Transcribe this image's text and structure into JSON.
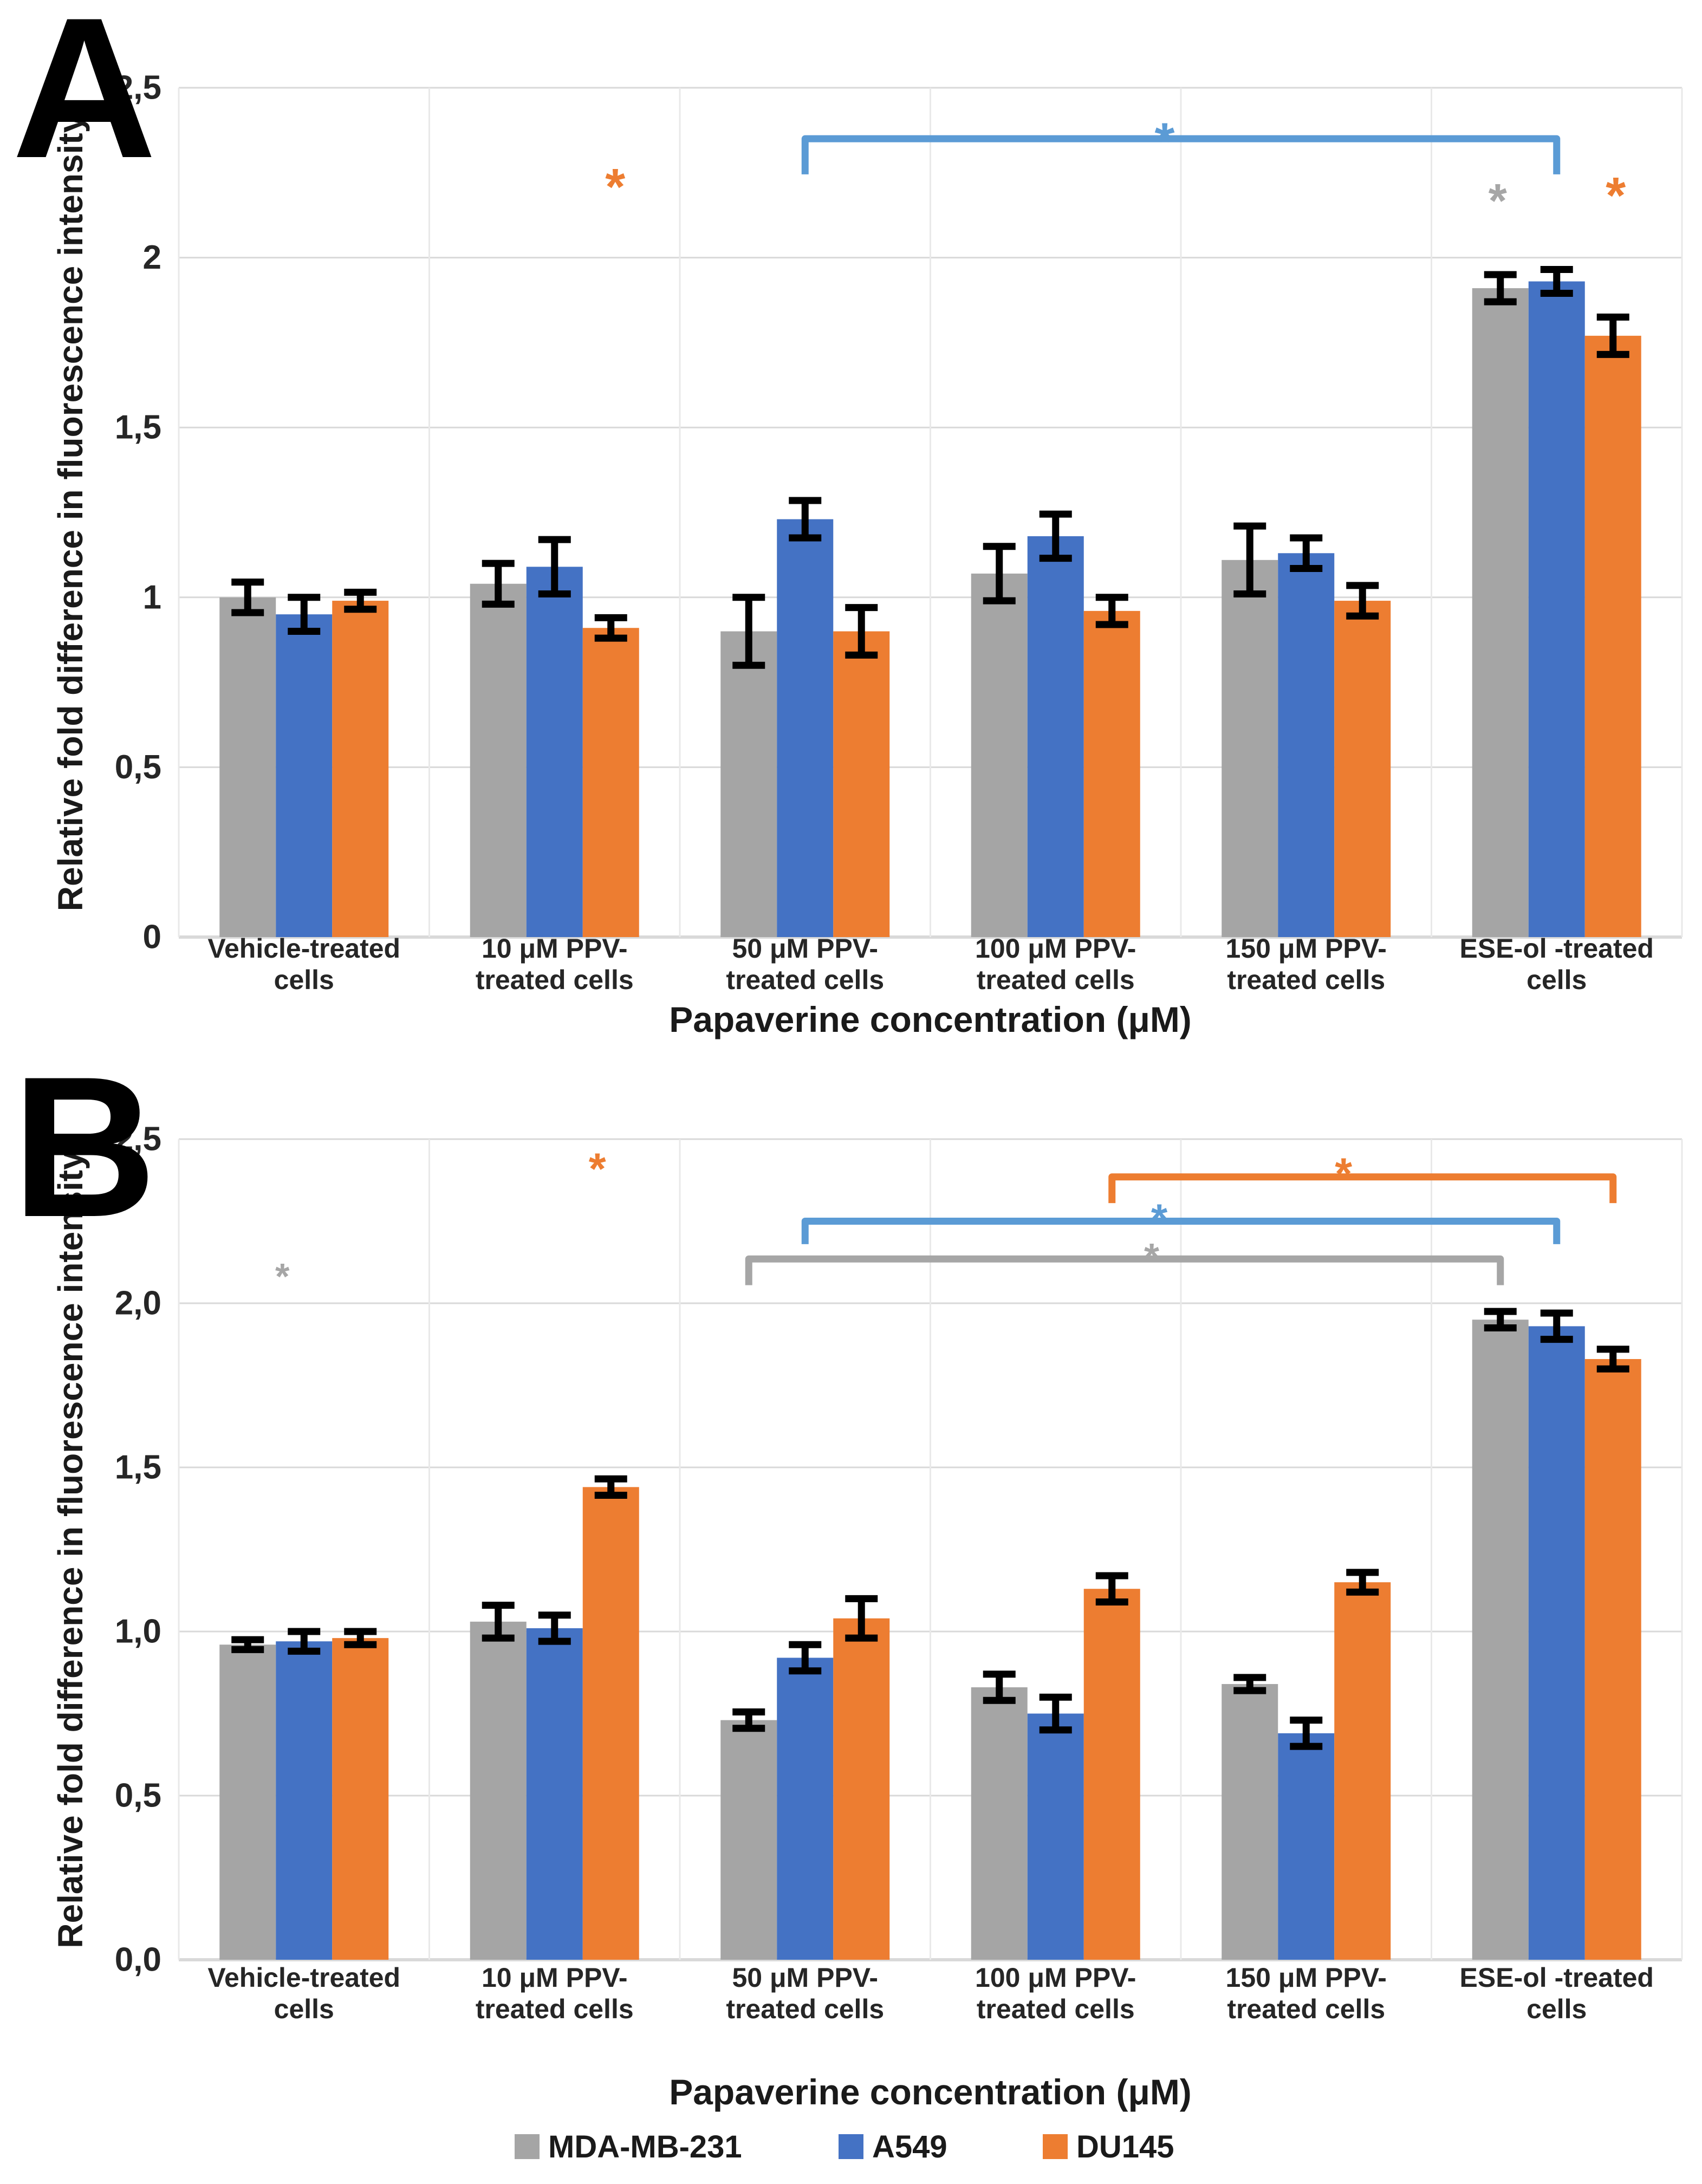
{
  "chart_data": {
    "type": "bar",
    "description": "Two-panel grouped bar chart with error bars and significance markers",
    "x_axis_title": "Papaverine concentration  (μM)",
    "y_axis_title": "Relative fold difference in fluorescence intensity",
    "categories_two_line": [
      [
        "Vehicle-treated",
        "cells"
      ],
      [
        "10 μM PPV-",
        "treated cells"
      ],
      [
        "50 μM PPV-",
        "treated cells"
      ],
      [
        "100 μM PPV-",
        "treated cells"
      ],
      [
        "150 μM PPV-",
        "treated cells"
      ],
      [
        "ESE-ol -treated",
        "cells"
      ]
    ],
    "series_names": [
      "MDA-MB-231",
      "A549",
      "DU145"
    ],
    "series_colors": [
      "#A5A5A5",
      "#4472C4",
      "#ED7D31"
    ],
    "ylim": [
      0,
      2.5
    ],
    "grid": true,
    "panels": [
      {
        "label": "A",
        "ticks": [
          {
            "label": "2,5",
            "value": 2.5
          },
          {
            "label": "2",
            "value": 2.0
          },
          {
            "label": "1,5",
            "value": 1.5
          },
          {
            "label": "1",
            "value": 1.0
          },
          {
            "label": "0,5",
            "value": 0.5
          },
          {
            "label": "0",
            "value": 0.0
          }
        ],
        "series": [
          {
            "name": "MDA-MB-231",
            "color": "#A5A5A5",
            "values": [
              1.0,
              1.04,
              0.9,
              1.07,
              1.11,
              1.91
            ],
            "errors": [
              0.045,
              0.06,
              0.1,
              0.08,
              0.1,
              0.04
            ]
          },
          {
            "name": "A549",
            "color": "#4472C4",
            "values": [
              0.95,
              1.09,
              1.23,
              1.18,
              1.13,
              1.93
            ],
            "errors": [
              0.05,
              0.08,
              0.055,
              0.065,
              0.045,
              0.035
            ]
          },
          {
            "name": "DU145",
            "color": "#ED7D31",
            "values": [
              0.99,
              0.91,
              0.9,
              0.96,
              0.99,
              1.77
            ],
            "errors": [
              0.025,
              0.03,
              0.07,
              0.04,
              0.045,
              0.055
            ]
          }
        ],
        "asterisks": [
          {
            "symbol": "*",
            "color": "#ED7D31",
            "group": 1,
            "series": 2,
            "dx": 8,
            "y": 2.26,
            "size": 95
          },
          {
            "symbol": "*",
            "color": "#A6A6A6",
            "group": 5,
            "series": 0,
            "dx": -5,
            "y": 2.215,
            "size": 88
          },
          {
            "symbol": "*",
            "color": "#ED7D31",
            "group": 5,
            "series": 2,
            "dx": 5,
            "y": 2.235,
            "size": 95
          }
        ],
        "brackets": [
          {
            "color": "#5B9BD5",
            "y": 2.35,
            "tick": 0.105,
            "from": {
              "group": 2,
              "series": 1
            },
            "to": {
              "group": 5,
              "series": 1
            },
            "star": {
              "symbol": "*",
              "y": 2.395,
              "dx": -30,
              "size": 95
            }
          }
        ]
      },
      {
        "label": "B",
        "ticks": [
          {
            "label": "2,5",
            "value": 2.5
          },
          {
            "label": "2,0",
            "value": 2.0
          },
          {
            "label": "1,5",
            "value": 1.5
          },
          {
            "label": "1,0",
            "value": 1.0
          },
          {
            "label": "0,5",
            "value": 0.5
          },
          {
            "label": "0,0",
            "value": 0.0
          }
        ],
        "series": [
          {
            "name": "MDA-MB-231",
            "color": "#A5A5A5",
            "values": [
              0.96,
              1.03,
              0.73,
              0.83,
              0.84,
              1.95
            ],
            "errors": [
              0.015,
              0.05,
              0.025,
              0.04,
              0.02,
              0.025
            ]
          },
          {
            "name": "A549",
            "color": "#4472C4",
            "values": [
              0.97,
              1.01,
              0.92,
              0.75,
              0.69,
              1.93
            ],
            "errors": [
              0.03,
              0.04,
              0.04,
              0.05,
              0.04,
              0.04
            ]
          },
          {
            "name": "DU145",
            "color": "#ED7D31",
            "values": [
              0.98,
              1.44,
              1.04,
              1.13,
              1.15,
              1.83
            ],
            "errors": [
              0.02,
              0.025,
              0.06,
              0.04,
              0.03,
              0.03
            ]
          }
        ],
        "asterisks": [
          {
            "symbol": "*",
            "color": "#A6A6A6",
            "group": 0,
            "series": null,
            "dx": -40,
            "y": 2.12,
            "size": 68
          },
          {
            "symbol": "*",
            "color": "#ED7D31",
            "group": 1,
            "series": 2,
            "dx": -25,
            "y": 2.455,
            "size": 82
          }
        ],
        "brackets": [
          {
            "color": "#A6A6A6",
            "y": 2.135,
            "tick": 0.08,
            "from": {
              "group": 2,
              "series": 0
            },
            "to": {
              "group": 5,
              "series": 0
            },
            "star": {
              "symbol": "*",
              "y": 2.18,
              "dx": 50,
              "size": 72
            }
          },
          {
            "color": "#5B9BD5",
            "y": 2.25,
            "tick": 0.07,
            "from": {
              "group": 2,
              "series": 1
            },
            "to": {
              "group": 5,
              "series": 1
            },
            "star": {
              "symbol": "*",
              "y": 2.3,
              "dx": -40,
              "size": 78
            }
          },
          {
            "color": "#ED7D31",
            "y": 2.385,
            "tick": 0.08,
            "from": {
              "group": 3,
              "series": 2
            },
            "to": {
              "group": 5,
              "series": 2
            },
            "star": {
              "symbol": "*",
              "y": 2.44,
              "dx": -35,
              "size": 82
            }
          }
        ]
      }
    ],
    "legend": {
      "position": "bottom",
      "entries": [
        {
          "label": "MDA-MB-231",
          "color": "#A5A5A5"
        },
        {
          "label": "A549",
          "color": "#4472C4"
        },
        {
          "label": "DU145",
          "color": "#ED7D31"
        }
      ]
    },
    "style_colors": {
      "gridline": "#D9D9D9",
      "separator": "#E9E9E9",
      "error_bar": "#000000",
      "text": "#262626"
    }
  }
}
